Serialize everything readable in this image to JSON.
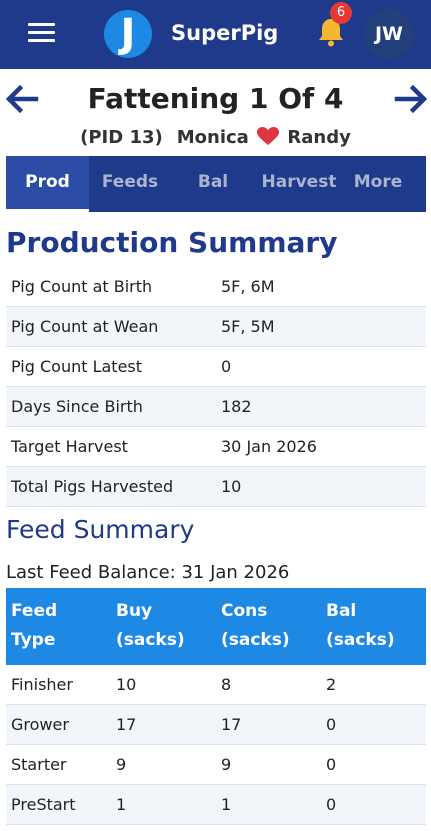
{
  "header": {
    "app_title": "SuperPig",
    "menu_icon": "hamburger-menu-icon",
    "logo_letter": "J",
    "notifications": {
      "icon": "bell-icon",
      "count": "6"
    },
    "avatar_initials": "JW",
    "colors": {
      "bar": "#1f3a8a",
      "logo": "#1e88e5",
      "badge": "#e53935",
      "bell": "#f5b731"
    }
  },
  "nav": {
    "title": "Fattening 1 Of 4",
    "prev_icon": "arrow-left-icon",
    "next_icon": "arrow-right-icon",
    "pid": "(PID 13)",
    "sow": "Monica",
    "boar": "Randy",
    "heart_icon": "heart-icon"
  },
  "tabs": [
    {
      "label": "Prod",
      "active": true
    },
    {
      "label": "Feeds",
      "active": false
    },
    {
      "label": "Bal",
      "active": false
    },
    {
      "label": "Harvest",
      "active": false
    },
    {
      "label": "More",
      "active": false
    }
  ],
  "production": {
    "title": "Production Summary",
    "rows": [
      {
        "label": "Pig Count at Birth",
        "value": "5F, 6M"
      },
      {
        "label": "Pig Count at Wean",
        "value": "5F, 5M"
      },
      {
        "label": "Pig Count Latest",
        "value": "0"
      },
      {
        "label": "Days Since Birth",
        "value": "182"
      },
      {
        "label": "Target Harvest",
        "value": "30 Jan 2026"
      },
      {
        "label": "Total Pigs Harvested",
        "value": "10"
      }
    ]
  },
  "feed": {
    "title": "Feed Summary",
    "last_balance": "Last Feed Balance: 31 Jan 2026",
    "columns": [
      [
        "Feed",
        "Type"
      ],
      [
        "Buy",
        "(sacks)"
      ],
      [
        "Cons",
        "(sacks)"
      ],
      [
        "Bal",
        "(sacks)"
      ]
    ],
    "rows": [
      [
        "Finisher",
        "10",
        "8",
        "2"
      ],
      [
        "Grower",
        "17",
        "17",
        "0"
      ],
      [
        "Starter",
        "9",
        "9",
        "0"
      ],
      [
        "PreStart",
        "1",
        "1",
        "0"
      ]
    ],
    "header_color": "#1e88e5"
  }
}
